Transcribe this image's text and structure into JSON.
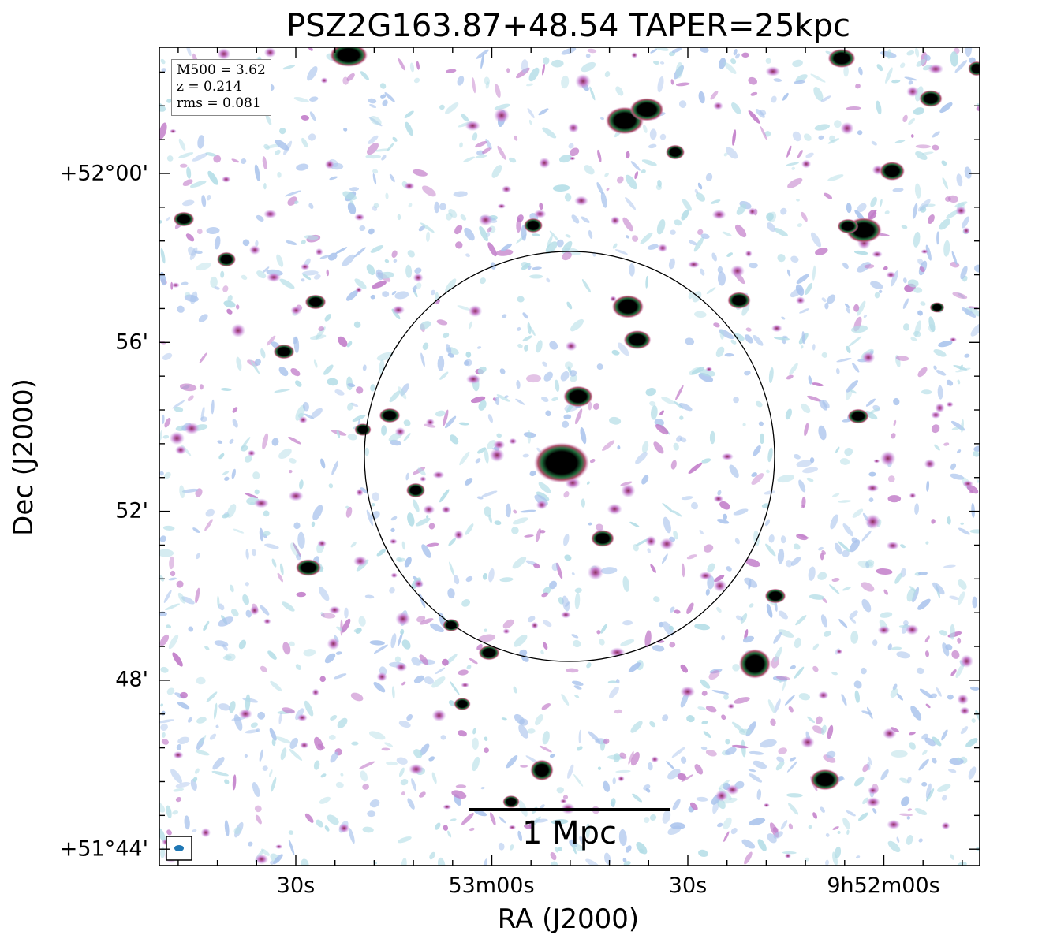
{
  "figure": {
    "title": "PSZ2G163.87+48.54 TAPER=25kpc",
    "xlabel": "RA (J2000)",
    "ylabel": "Dec (J2000)",
    "x_ticks": [
      "30s",
      "53m00s",
      "30s",
      "9h52m00s"
    ],
    "y_ticks": [
      "+52°00'",
      "56'",
      "52'",
      "48'",
      "+51°44'"
    ],
    "info": {
      "m500": "M500 = 3.62",
      "z": "z = 0.214",
      "rms": "rms = 0.081"
    },
    "scalebar_label": "1 Mpc",
    "colors": {
      "noise_blue": "#a9c3ec",
      "noise_cyan": "#b3dde6",
      "noise_pink": "#c07ac8",
      "source_core": "#000000",
      "source_ring": "#1e6b3a",
      "beam": "#1f77b4",
      "circle": "#000000"
    }
  }
}
